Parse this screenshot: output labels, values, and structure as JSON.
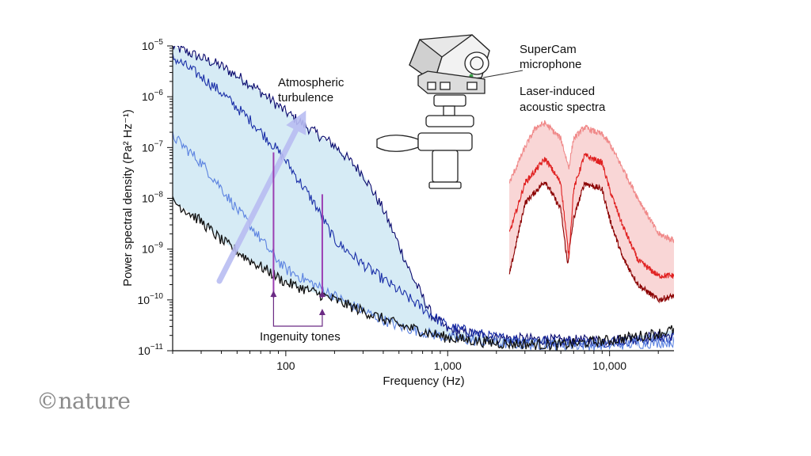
{
  "chart_data": {
    "type": "line",
    "title": "",
    "xlabel": "Frequency (Hz)",
    "ylabel": "Power spectral density (Pa² Hz⁻¹)",
    "x_scale": "log",
    "y_scale": "log",
    "xlim": [
      20,
      25000
    ],
    "ylim": [
      1e-11,
      1e-05
    ],
    "x_ticks": [
      {
        "value": 100,
        "label": "100"
      },
      {
        "value": 1000,
        "label": "1,000"
      },
      {
        "value": 10000,
        "label": "10,000"
      }
    ],
    "y_ticks": [
      {
        "value": 1e-05,
        "base": "10",
        "exp": "−5"
      },
      {
        "value": 1e-06,
        "base": "10",
        "exp": "−6"
      },
      {
        "value": 1e-07,
        "base": "10",
        "exp": "−7"
      },
      {
        "value": 1e-08,
        "base": "10",
        "exp": "−8"
      },
      {
        "value": 1e-09,
        "base": "10",
        "exp": "−9"
      },
      {
        "value": 1e-10,
        "base": "10",
        "exp": "−10"
      },
      {
        "value": 1e-11,
        "base": "10",
        "exp": "−11"
      }
    ],
    "grid": false,
    "series": [
      {
        "color": "#0a0a6e",
        "points": [
          [
            20,
            1e-05
          ],
          [
            40,
            4e-06
          ],
          [
            60,
            1.8e-06
          ],
          [
            80,
            9e-07
          ],
          [
            100,
            5e-07
          ],
          [
            150,
            2e-07
          ],
          [
            200,
            1.1e-07
          ],
          [
            300,
            3e-08
          ],
          [
            400,
            6e-09
          ],
          [
            500,
            1.2e-09
          ],
          [
            600,
            3e-10
          ],
          [
            800,
            5e-11
          ],
          [
            1000,
            2.6e-11
          ],
          [
            2000,
            1.8e-11
          ],
          [
            5000,
            1.6e-11
          ],
          [
            10000,
            1.6e-11
          ],
          [
            25000,
            2e-11
          ]
        ]
      },
      {
        "color": "#1a2fa8",
        "points": [
          [
            20,
            6e-06
          ],
          [
            30,
            2.5e-06
          ],
          [
            40,
            1.2e-06
          ],
          [
            60,
            3.5e-07
          ],
          [
            80,
            1.3e-07
          ],
          [
            100,
            5.5e-08
          ],
          [
            150,
            8e-09
          ],
          [
            200,
            1.5e-09
          ],
          [
            300,
            5e-10
          ],
          [
            500,
            1.5e-10
          ],
          [
            800,
            5e-11
          ],
          [
            1000,
            3e-11
          ],
          [
            2000,
            1.8e-11
          ],
          [
            5000,
            1.5e-11
          ],
          [
            10000,
            1.5e-11
          ],
          [
            25000,
            1.8e-11
          ]
        ]
      },
      {
        "color": "#5b82e0",
        "points": [
          [
            20,
            1.7e-07
          ],
          [
            30,
            5e-08
          ],
          [
            40,
            1.6e-08
          ],
          [
            50,
            6e-09
          ],
          [
            60,
            3e-09
          ],
          [
            80,
            9e-10
          ],
          [
            100,
            4e-10
          ],
          [
            150,
            2e-10
          ],
          [
            200,
            1.2e-10
          ],
          [
            300,
            6e-11
          ],
          [
            500,
            3e-11
          ],
          [
            1000,
            1.8e-11
          ],
          [
            2000,
            1.4e-11
          ],
          [
            5000,
            1.3e-11
          ],
          [
            10000,
            1.3e-11
          ],
          [
            25000,
            1.5e-11
          ]
        ]
      },
      {
        "color": "#111111",
        "points": [
          [
            20,
            9e-09
          ],
          [
            30,
            3.5e-09
          ],
          [
            40,
            1.5e-09
          ],
          [
            60,
            6e-10
          ],
          [
            80,
            3.5e-10
          ],
          [
            100,
            2.2e-10
          ],
          [
            150,
            1.4e-10
          ],
          [
            200,
            1e-10
          ],
          [
            300,
            6e-11
          ],
          [
            500,
            3.2e-11
          ],
          [
            1000,
            1.8e-11
          ],
          [
            2000,
            1.4e-11
          ],
          [
            5000,
            1.3e-11
          ],
          [
            10000,
            1.6e-11
          ],
          [
            20000,
            2.2e-11
          ],
          [
            25000,
            2.6e-11
          ]
        ]
      },
      {
        "color": "#8b0000",
        "points": [
          [
            2400,
            3e-10
          ],
          [
            3000,
            8e-09
          ],
          [
            4000,
            2.2e-08
          ],
          [
            5000,
            6e-09
          ],
          [
            5500,
            5e-10
          ],
          [
            6000,
            4e-09
          ],
          [
            7000,
            2e-08
          ],
          [
            9000,
            1.5e-08
          ],
          [
            10000,
            4e-09
          ],
          [
            12000,
            7e-10
          ],
          [
            15000,
            2e-10
          ],
          [
            20000,
            1e-10
          ],
          [
            25000,
            1.2e-10
          ]
        ]
      },
      {
        "color": "#e02020",
        "points": [
          [
            2400,
            2e-09
          ],
          [
            3000,
            2e-08
          ],
          [
            4000,
            6e-08
          ],
          [
            5000,
            2e-08
          ],
          [
            5600,
            7e-10
          ],
          [
            6000,
            1.5e-08
          ],
          [
            7000,
            7e-08
          ],
          [
            9000,
            5e-08
          ],
          [
            10000,
            1.5e-08
          ],
          [
            12000,
            3e-09
          ],
          [
            15000,
            6e-10
          ],
          [
            20000,
            3e-10
          ],
          [
            25000,
            3e-10
          ]
        ]
      },
      {
        "color": "#f08a8a",
        "points": [
          [
            2400,
            2e-08
          ],
          [
            3000,
            1e-07
          ],
          [
            3500,
            2.5e-07
          ],
          [
            4000,
            3e-07
          ],
          [
            5000,
            1.5e-07
          ],
          [
            5600,
            4e-08
          ],
          [
            6000,
            1.5e-07
          ],
          [
            7000,
            2.5e-07
          ],
          [
            9000,
            1.8e-07
          ],
          [
            10000,
            1.2e-07
          ],
          [
            12000,
            4e-08
          ],
          [
            15000,
            1e-08
          ],
          [
            20000,
            2e-09
          ],
          [
            25000,
            1.5e-09
          ]
        ]
      }
    ],
    "annotations": {
      "turbulence": [
        "Atmospheric",
        "turbulence"
      ],
      "laser": [
        "Laser-induced",
        "acoustic spectra"
      ],
      "mic": [
        "SuperCam",
        "microphone"
      ],
      "tones": "Ingenuity tones",
      "tone_freqs": [
        84,
        168
      ]
    },
    "colors": {
      "blue_fill": "#cfe8f3",
      "red_fill": "#f8d2d2",
      "turbulence_arrow": "#b9bdf2",
      "tone_line": "#9b3fb2",
      "tone_bracket": "#6b2a84"
    }
  },
  "brand": "©nature"
}
